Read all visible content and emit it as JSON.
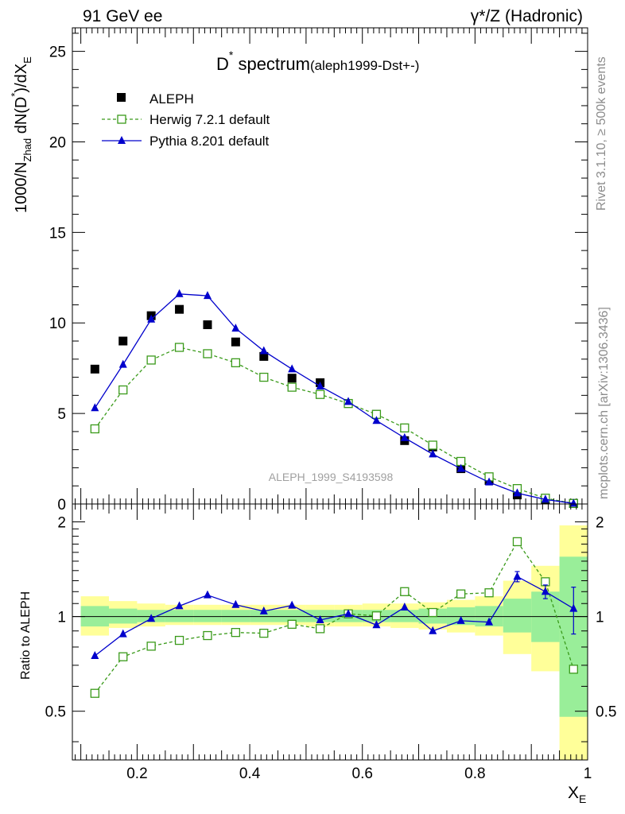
{
  "header": {
    "left": "91 GeV ee",
    "right": "γ*/Z (Hadronic)"
  },
  "side_labels": {
    "rivet": "Rivet 3.1.10, ≥ 500k events",
    "mcplots": "mcplots.cern.ch [arXiv:1306.3436]"
  },
  "chart_data": [
    {
      "type": "scatter",
      "title_main": "D",
      "title_sup": "*",
      "title_main2": " spectrum",
      "title_sub": "(aleph1999-Dst+-)",
      "ylabel": {
        "prefix": "1000/N",
        "prefix_sub": "Zhad",
        "middle": " dN(D",
        "middle_sup": "*",
        "suffix": ")/dX",
        "suffix_sub": "E"
      },
      "analysis_label": "ALEPH_1999_S4193598",
      "xlim": [
        0.085,
        1.0
      ],
      "ylim": [
        0,
        26.3
      ],
      "yticks": [
        0,
        5,
        10,
        15,
        20,
        25
      ],
      "ytick_labels": [
        "0",
        "5",
        "10",
        "15",
        "20",
        "25"
      ],
      "legend_position": "top-left",
      "x": [
        0.125,
        0.175,
        0.225,
        0.275,
        0.325,
        0.375,
        0.425,
        0.475,
        0.525,
        0.575,
        0.625,
        0.675,
        0.725,
        0.775,
        0.825,
        0.875,
        0.925,
        0.975
      ],
      "series": [
        {
          "name": "ALEPH",
          "color": "#000000",
          "marker": "filled-square",
          "values": [
            7.45,
            9.0,
            10.4,
            10.75,
            9.9,
            8.95,
            8.15,
            6.95,
            6.7,
            5.55,
            4.95,
            3.5,
            3.15,
            1.95,
            1.3,
            0.5,
            0.25,
            0.03
          ]
        },
        {
          "name": "Herwig 7.2.1 default",
          "color": "#3a9a1a",
          "marker": "open-square",
          "line": "dashed",
          "values": [
            4.15,
            6.3,
            7.95,
            8.65,
            8.3,
            7.8,
            7.0,
            6.45,
            6.05,
            5.55,
            4.95,
            4.2,
            3.25,
            2.35,
            1.5,
            0.85,
            0.32,
            0.03
          ]
        },
        {
          "name": "Pythia 8.201 default",
          "color": "#0000cc",
          "marker": "filled-triangle",
          "line": "solid",
          "values": [
            5.3,
            7.7,
            10.2,
            11.6,
            11.5,
            9.7,
            8.45,
            7.45,
            6.5,
            5.65,
            4.6,
            3.65,
            2.75,
            1.95,
            1.2,
            0.6,
            0.25,
            0.03
          ]
        }
      ]
    },
    {
      "type": "scatter",
      "ylabel": "Ratio to ALEPH",
      "xlabel_main": "X",
      "xlabel_sub": "E",
      "xlim": [
        0.085,
        1.0
      ],
      "ylim": [
        0.35,
        2.28
      ],
      "yscale": "log",
      "xticks": [
        0.2,
        0.4,
        0.6,
        0.8,
        1.0
      ],
      "xtick_labels": [
        "0.2",
        "0.4",
        "0.6",
        "0.8",
        "1"
      ],
      "yticks": [
        0.5,
        1,
        2
      ],
      "ytick_labels": [
        "0.5",
        "1",
        "2"
      ],
      "band_edges": [
        0.1,
        0.15,
        0.2,
        0.25,
        0.3,
        0.35,
        0.4,
        0.45,
        0.5,
        0.55,
        0.6,
        0.65,
        0.7,
        0.75,
        0.8,
        0.85,
        0.9,
        0.95,
        1.0
      ],
      "band_yellow": [
        [
          0.87,
          1.16
        ],
        [
          0.92,
          1.12
        ],
        [
          0.93,
          1.1
        ],
        [
          0.94,
          1.09
        ],
        [
          0.94,
          1.09
        ],
        [
          0.94,
          1.09
        ],
        [
          0.94,
          1.09
        ],
        [
          0.94,
          1.09
        ],
        [
          0.93,
          1.09
        ],
        [
          0.93,
          1.09
        ],
        [
          0.93,
          1.1
        ],
        [
          0.92,
          1.1
        ],
        [
          0.91,
          1.11
        ],
        [
          0.89,
          1.13
        ],
        [
          0.87,
          1.16
        ],
        [
          0.76,
          1.3
        ],
        [
          0.67,
          1.45
        ],
        [
          0.34,
          1.95
        ]
      ],
      "band_green": [
        [
          0.93,
          1.08
        ],
        [
          0.95,
          1.06
        ],
        [
          0.96,
          1.05
        ],
        [
          0.96,
          1.05
        ],
        [
          0.96,
          1.05
        ],
        [
          0.96,
          1.05
        ],
        [
          0.96,
          1.05
        ],
        [
          0.96,
          1.05
        ],
        [
          0.96,
          1.05
        ],
        [
          0.96,
          1.05
        ],
        [
          0.96,
          1.05
        ],
        [
          0.96,
          1.05
        ],
        [
          0.95,
          1.06
        ],
        [
          0.94,
          1.07
        ],
        [
          0.93,
          1.08
        ],
        [
          0.89,
          1.14
        ],
        [
          0.83,
          1.2
        ],
        [
          0.48,
          1.55
        ]
      ],
      "series": [
        {
          "name": "Herwig 7.2.1 default",
          "color": "#3a9a1a",
          "marker": "open-square",
          "line": "dashed",
          "values": [
            0.57,
            0.745,
            0.805,
            0.84,
            0.87,
            0.89,
            0.885,
            0.945,
            0.915,
            1.02,
            1.005,
            1.2,
            1.03,
            1.18,
            1.19,
            1.73,
            1.29,
            0.68
          ]
        },
        {
          "name": "Pythia 8.201 default",
          "color": "#0000cc",
          "marker": "filled-triangle",
          "line": "solid",
          "values": [
            0.75,
            0.88,
            0.985,
            1.08,
            1.17,
            1.09,
            1.04,
            1.085,
            0.975,
            1.02,
            0.94,
            1.07,
            0.9,
            0.97,
            0.96,
            1.34,
            1.2,
            1.06
          ],
          "errors": [
            0,
            0,
            0,
            0,
            0,
            0,
            0,
            0,
            0,
            0,
            0,
            0,
            0,
            0,
            0,
            0.05,
            0.06,
            0.18
          ]
        }
      ]
    }
  ]
}
